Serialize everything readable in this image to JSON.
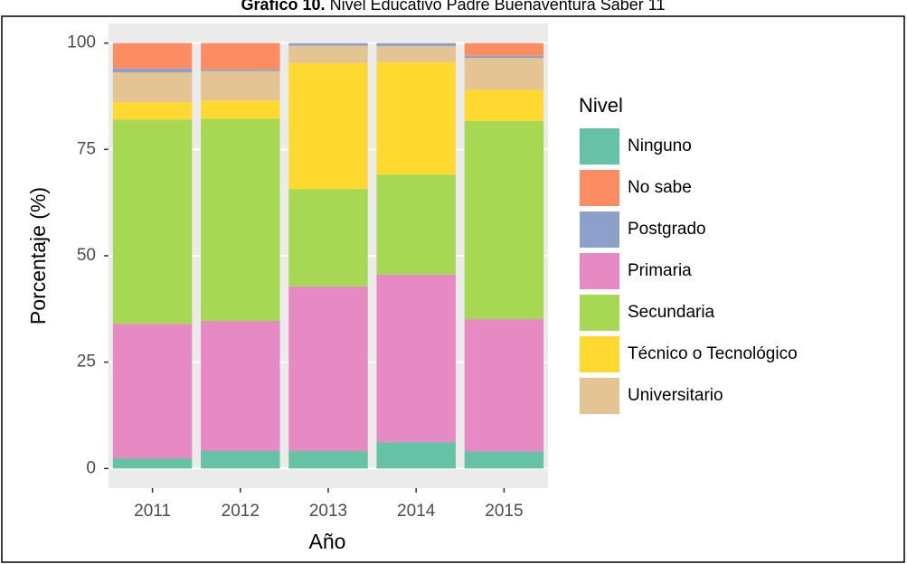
{
  "chart_data": {
    "type": "stacked_bar",
    "title_label": "Gráfico 10.",
    "title": "Nivel Educativo Padre Buenaventura Saber 11",
    "x_label": "Año",
    "y_label": "Porcentaje (%)",
    "legend_title": "Nivel",
    "categories": [
      "2011",
      "2012",
      "2013",
      "2014",
      "2015"
    ],
    "series": [
      {
        "name": "Ninguno",
        "color": "#66c2a5",
        "values": [
          2.4,
          4.1,
          4.1,
          6.2,
          4.0
        ]
      },
      {
        "name": "No sabe",
        "color": "#fc8d62",
        "values": [
          6.0,
          6.2,
          0,
          0,
          3.0
        ]
      },
      {
        "name": "Postgrado",
        "color": "#8da0cb",
        "values": [
          0.9,
          0.4,
          0.6,
          0.7,
          0.5
        ]
      },
      {
        "name": "Primaria",
        "color": "#e78ac3",
        "values": [
          31.6,
          30.6,
          38.7,
          39.4,
          31.1
        ]
      },
      {
        "name": "Secundaria",
        "color": "#a6d854",
        "values": [
          48.0,
          47.5,
          22.9,
          23.5,
          46.6
        ]
      },
      {
        "name": "Técnico o Tecnológico",
        "color": "#ffd92f",
        "values": [
          4.1,
          4.3,
          29.6,
          26.4,
          7.3
        ]
      },
      {
        "name": "Universitario",
        "color": "#e5c494",
        "values": [
          7.0,
          6.9,
          4.1,
          3.8,
          7.5
        ]
      }
    ],
    "ylim": [
      -4.6,
      104.6
    ],
    "yticks": [
      0,
      25,
      50,
      75,
      100
    ],
    "grid": true,
    "legend": "right"
  }
}
